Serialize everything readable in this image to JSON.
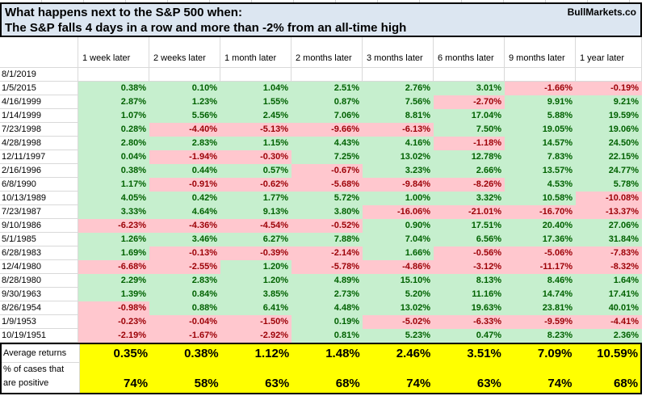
{
  "title": {
    "line1": "What happens next to the S&P 500 when:",
    "line2": "The S&P falls 4 days in a row and more than -2% from an all-time high",
    "brand": "BullMarkets.co"
  },
  "table": {
    "columns": [
      "1 week later",
      "2 weeks later",
      "1 month later",
      "2 months later",
      "3 months later",
      "6 months later",
      "9 months later",
      "1 year later"
    ],
    "rows": [
      {
        "date": "8/1/2019",
        "values": [
          "",
          "",
          "",
          "",
          "",
          "",
          "",
          ""
        ]
      },
      {
        "date": "1/5/2015",
        "values": [
          "0.38%",
          "0.10%",
          "1.04%",
          "2.51%",
          "2.76%",
          "3.01%",
          "-1.66%",
          "-0.19%"
        ]
      },
      {
        "date": "4/16/1999",
        "values": [
          "2.87%",
          "1.23%",
          "1.55%",
          "0.87%",
          "7.56%",
          "-2.70%",
          "9.91%",
          "9.21%"
        ]
      },
      {
        "date": "1/14/1999",
        "values": [
          "1.07%",
          "5.56%",
          "2.45%",
          "7.06%",
          "8.81%",
          "17.04%",
          "5.88%",
          "19.59%"
        ]
      },
      {
        "date": "7/23/1998",
        "values": [
          "0.28%",
          "-4.40%",
          "-5.13%",
          "-9.66%",
          "-6.13%",
          "7.50%",
          "19.05%",
          "19.06%"
        ]
      },
      {
        "date": "4/28/1998",
        "values": [
          "2.80%",
          "2.83%",
          "1.15%",
          "4.43%",
          "4.16%",
          "-1.18%",
          "14.57%",
          "24.50%"
        ]
      },
      {
        "date": "12/11/1997",
        "values": [
          "0.04%",
          "-1.94%",
          "-0.30%",
          "7.25%",
          "13.02%",
          "12.78%",
          "7.83%",
          "22.15%"
        ]
      },
      {
        "date": "2/16/1996",
        "values": [
          "0.38%",
          "0.44%",
          "0.57%",
          "-0.67%",
          "3.23%",
          "2.66%",
          "13.57%",
          "24.77%"
        ]
      },
      {
        "date": "6/8/1990",
        "values": [
          "1.17%",
          "-0.91%",
          "-0.62%",
          "-5.68%",
          "-9.84%",
          "-8.26%",
          "4.53%",
          "5.78%"
        ]
      },
      {
        "date": "10/13/1989",
        "values": [
          "4.05%",
          "0.42%",
          "1.77%",
          "5.72%",
          "1.00%",
          "3.32%",
          "10.58%",
          "-10.08%"
        ]
      },
      {
        "date": "7/23/1987",
        "values": [
          "3.33%",
          "4.64%",
          "9.13%",
          "3.80%",
          "-16.06%",
          "-21.01%",
          "-16.70%",
          "-13.37%"
        ]
      },
      {
        "date": "9/10/1986",
        "values": [
          "-6.23%",
          "-4.36%",
          "-4.54%",
          "-0.52%",
          "0.90%",
          "17.51%",
          "20.40%",
          "27.06%"
        ]
      },
      {
        "date": "5/1/1985",
        "values": [
          "1.26%",
          "3.46%",
          "6.27%",
          "7.88%",
          "7.04%",
          "6.56%",
          "17.36%",
          "31.84%"
        ]
      },
      {
        "date": "6/28/1983",
        "values": [
          "1.69%",
          "-0.13%",
          "-0.39%",
          "-2.14%",
          "1.66%",
          "-0.56%",
          "-5.06%",
          "-7.83%"
        ]
      },
      {
        "date": "12/4/1980",
        "values": [
          "-6.68%",
          "-2.55%",
          "1.20%",
          "-5.78%",
          "-4.86%",
          "-3.12%",
          "-11.17%",
          "-8.32%"
        ]
      },
      {
        "date": "8/28/1980",
        "values": [
          "2.29%",
          "2.83%",
          "1.20%",
          "4.89%",
          "15.10%",
          "8.13%",
          "8.46%",
          "1.64%"
        ]
      },
      {
        "date": "9/30/1963",
        "values": [
          "1.39%",
          "0.84%",
          "3.85%",
          "2.73%",
          "5.20%",
          "11.16%",
          "14.74%",
          "17.41%"
        ]
      },
      {
        "date": "8/26/1954",
        "values": [
          "-0.98%",
          "0.88%",
          "6.41%",
          "4.48%",
          "13.02%",
          "19.63%",
          "23.81%",
          "40.01%"
        ]
      },
      {
        "date": "1/9/1953",
        "values": [
          "-0.23%",
          "-0.04%",
          "-1.50%",
          "0.19%",
          "-5.02%",
          "-6.33%",
          "-9.59%",
          "-4.41%"
        ]
      },
      {
        "date": "10/19/1951",
        "values": [
          "-2.19%",
          "-1.67%",
          "-2.92%",
          "0.81%",
          "5.23%",
          "0.47%",
          "8.23%",
          "2.36%"
        ]
      }
    ]
  },
  "summary": {
    "average_label": "Average returns",
    "average_values": [
      "0.35%",
      "0.38%",
      "1.12%",
      "1.48%",
      "2.46%",
      "3.51%",
      "7.09%",
      "10.59%"
    ],
    "positive_label_line1": "% of cases that",
    "positive_label_line2": "are positive",
    "positive_values": [
      "74%",
      "58%",
      "63%",
      "68%",
      "74%",
      "63%",
      "74%",
      "68%"
    ]
  },
  "colors": {
    "positive_bg": "#c6efce",
    "positive_text": "#006100",
    "negative_bg": "#ffc7ce",
    "negative_text": "#9c0006",
    "summary_bg": "#ffff00",
    "title_bg": "#dce6f1"
  }
}
